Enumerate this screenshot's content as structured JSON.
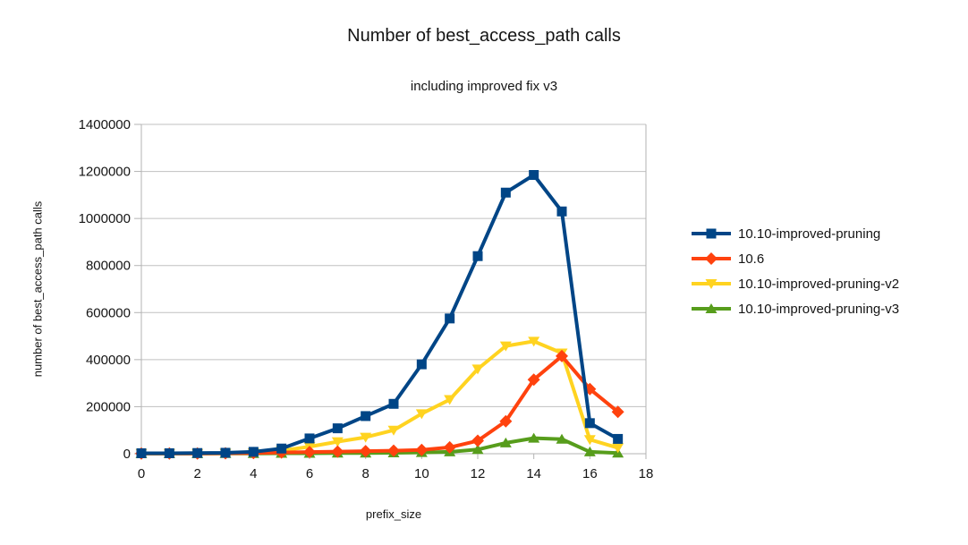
{
  "chart_data": {
    "type": "line",
    "title": "Number of best_access_path calls",
    "subtitle": "including improved fix v3",
    "xlabel": "prefix_size",
    "ylabel": "number of best_access_path calls",
    "x": [
      0,
      1,
      2,
      3,
      4,
      5,
      6,
      7,
      8,
      9,
      10,
      11,
      12,
      13,
      14,
      15,
      16,
      17
    ],
    "xlim": [
      0,
      18
    ],
    "ylim": [
      0,
      1400000
    ],
    "x_ticks": [
      0,
      2,
      4,
      6,
      8,
      10,
      12,
      14,
      16,
      18
    ],
    "y_ticks": [
      0,
      200000,
      400000,
      600000,
      800000,
      1000000,
      1200000,
      1400000
    ],
    "grid": "horizontal",
    "legend_position": "right",
    "colors": {
      "axis": "#b3b3b3",
      "grid": "#c0c0c0",
      "text": "#141414"
    },
    "series": [
      {
        "name": "10.10-improved-pruning",
        "color": "#004586",
        "marker": "square",
        "values": [
          2000,
          2000,
          3000,
          4000,
          8000,
          22000,
          65000,
          108000,
          160000,
          212000,
          380000,
          575000,
          840000,
          1110000,
          1185000,
          1030000,
          130000,
          63000
        ]
      },
      {
        "name": "10.6",
        "color": "#ff420e",
        "marker": "diamond",
        "values": [
          1000,
          1000,
          1000,
          2000,
          3000,
          5000,
          7000,
          9000,
          11000,
          13000,
          16000,
          27000,
          55000,
          138000,
          315000,
          415000,
          275000,
          178000
        ]
      },
      {
        "name": "10.10-improved-pruning-v2",
        "color": "#ffd320",
        "marker": "triangle-down",
        "values": [
          1000,
          1000,
          1000,
          2000,
          4000,
          13000,
          30000,
          51000,
          70000,
          100000,
          170000,
          230000,
          360000,
          458000,
          478000,
          428000,
          60000,
          25000
        ]
      },
      {
        "name": "10.10-improved-pruning-v3",
        "color": "#579d1c",
        "marker": "triangle-up",
        "values": [
          500,
          500,
          500,
          1000,
          1000,
          2000,
          2000,
          3000,
          3000,
          4000,
          5000,
          8000,
          18000,
          46000,
          66000,
          62000,
          8000,
          3000
        ]
      }
    ]
  }
}
